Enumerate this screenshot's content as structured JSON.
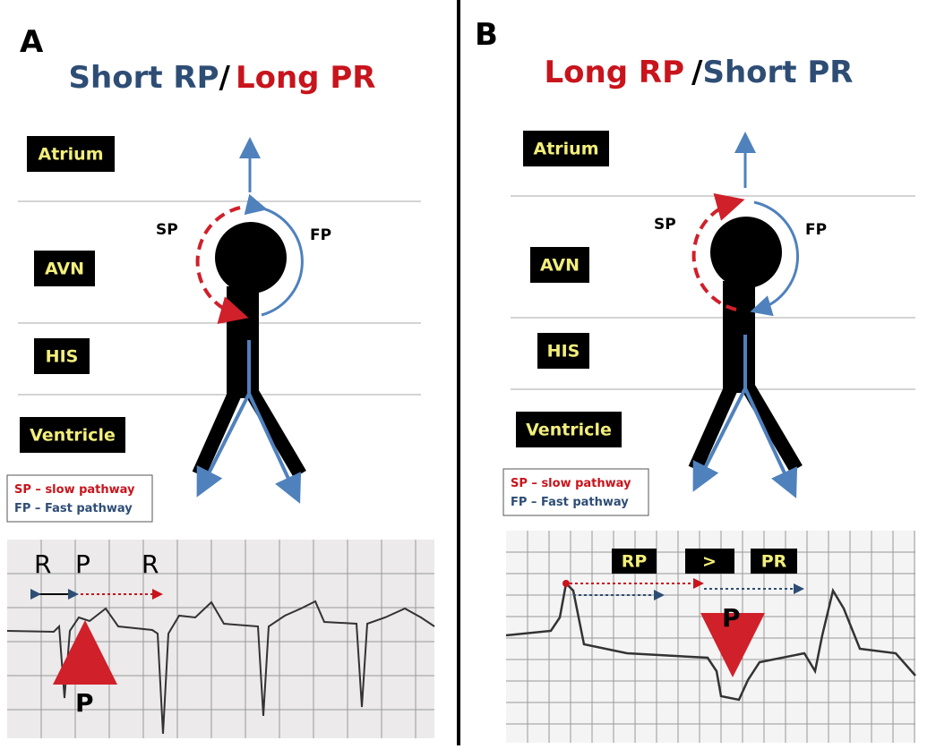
{
  "panels": [
    {
      "letter": "A",
      "title": [
        "Short RP",
        "/",
        "Long PR"
      ],
      "layers": [
        "Atrium",
        "AVN",
        "HIS",
        "Ventricle"
      ],
      "pathways": [
        "SP",
        "FP"
      ],
      "legend": [
        "SP – slow pathway",
        "FP – Fast pathway"
      ],
      "ecg_labels": [
        "R",
        "P",
        "R",
        "P"
      ]
    },
    {
      "letter": "B",
      "title": [
        "Long RP",
        "/",
        "Short PR"
      ],
      "layers": [
        "Atrium",
        "AVN",
        "HIS",
        "Ventricle"
      ],
      "pathways": [
        "SP",
        "FP"
      ],
      "legend": [
        "SP – slow pathway",
        "FP – Fast pathway"
      ],
      "ecg_labels": [
        "RP",
        ">",
        "PR",
        "P"
      ]
    }
  ]
}
